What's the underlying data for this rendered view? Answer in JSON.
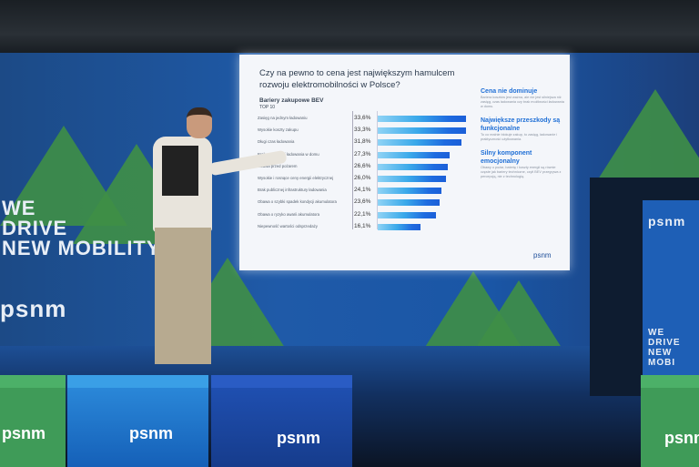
{
  "slide": {
    "title": "Czy na pewno to cena jest największym hamulcem rozwoju elektromobilności w Polsce?",
    "subtitle": "Bariery zakupowe BEV",
    "top_label": "TOP 10",
    "rows": [
      {
        "label": "Zasięg na jednym ładowaniu",
        "value": "33,6%",
        "pct": 33.6
      },
      {
        "label": "Wysokie koszty zakupu",
        "value": "33,3%",
        "pct": 33.3
      },
      {
        "label": "Długi czas ładowania",
        "value": "31,8%",
        "pct": 31.8
      },
      {
        "label": "Brak możliwości ładowania w domu",
        "value": "27,3%",
        "pct": 27.3
      },
      {
        "label": "Obawa przed pożarem",
        "value": "26,6%",
        "pct": 26.6
      },
      {
        "label": "Wysokie i rosnące ceny energii elektrycznej",
        "value": "26,0%",
        "pct": 26.0
      },
      {
        "label": "Brak publicznej infrastruktury ładowania",
        "value": "24,1%",
        "pct": 24.1
      },
      {
        "label": "Obawa o szybki spadek kondycji akumulatora",
        "value": "23,6%",
        "pct": 23.6
      },
      {
        "label": "Obawa o ryzyko awarii akumulatora",
        "value": "22,1%",
        "pct": 22.1
      },
      {
        "label": "Niepewność wartości odsprzedaży",
        "value": "16,1%",
        "pct": 16.1
      }
    ],
    "side": [
      {
        "heading": "Cena nie dominuje",
        "body": "Bariera kosztów jest ważna, ale nie jest silniejsza niż zasięg, czas ładowania czy brak możliwości ładowania w domu."
      },
      {
        "heading": "Największe przeszkody są funkcjonalne",
        "body": "To co realnie blokuje zakup, to zasięg, ładowanie i praktyczność użytkowania."
      },
      {
        "heading": "Silny komponent emocjonalny",
        "body": "Obawy o pożar, baterię i koszty energii są równie częste jak bariery techniczne, czyli BEV przegrywa z percepcją, nie z technologią."
      }
    ],
    "logo": "psnm"
  },
  "backdrop": {
    "slogan_lines": [
      "WE",
      "DRIVE",
      "NEW MOBILITY"
    ],
    "logo": "psnm",
    "right_slogan_lines": [
      "WE",
      "DRIVE",
      "NEW MOBI"
    ]
  },
  "cubes": [
    {
      "logo": "psnm"
    },
    {
      "logo": "psnm"
    },
    {
      "logo": "psnm"
    },
    {
      "logo": "psnm"
    }
  ],
  "colors": {
    "bar_dark": "#1b5fd8",
    "bar_light": "#8fd3f5",
    "backdrop": "#1f5aa8",
    "tree": "#3f8f46",
    "accent": "#1f6fd6"
  }
}
